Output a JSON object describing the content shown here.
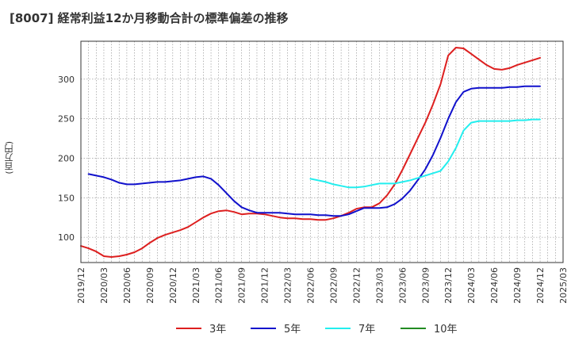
{
  "chart_data": {
    "type": "line",
    "title": "[8007]  経常利益12か月移動合計の標準偏差の推移",
    "ylabel": "(百万円)",
    "xlabel": "",
    "ylim": [
      68,
      348
    ],
    "yticks": [
      100,
      150,
      200,
      250,
      300
    ],
    "x_tick_labels": [
      "2019/12",
      "2020/03",
      "2020/06",
      "2020/09",
      "2020/12",
      "2021/03",
      "2021/06",
      "2021/09",
      "2021/12",
      "2022/03",
      "2022/06",
      "2022/09",
      "2022/12",
      "2023/03",
      "2023/06",
      "2023/09",
      "2023/12",
      "2024/03",
      "2024/06",
      "2024/09",
      "2024/12",
      "2025/03"
    ],
    "grid": true,
    "legend_position": "bottom",
    "series": [
      {
        "name": "3年",
        "color": "#dd1f1f",
        "values": [
          89,
          86,
          82,
          76,
          75,
          76,
          78,
          81,
          86,
          93,
          99,
          103,
          106,
          109,
          113,
          119,
          125,
          130,
          133,
          134,
          132,
          129,
          130,
          130,
          129,
          127,
          125,
          124,
          124,
          123,
          123,
          122,
          122,
          124,
          127,
          131,
          136,
          138,
          138,
          143,
          153,
          167,
          185,
          205,
          225,
          245,
          268,
          294,
          330,
          340,
          339,
          332,
          325,
          318,
          313,
          312,
          314,
          318,
          321,
          324,
          327
        ],
        "start_index": 0
      },
      {
        "name": "5年",
        "color": "#1111cc",
        "values": [
          180,
          178,
          176,
          173,
          169,
          167,
          167,
          168,
          169,
          170,
          170,
          171,
          172,
          174,
          176,
          177,
          174,
          166,
          156,
          146,
          138,
          134,
          131,
          131,
          131,
          131,
          130,
          129,
          129,
          129,
          128,
          128,
          127,
          127,
          129,
          133,
          137,
          137,
          137,
          138,
          142,
          149,
          159,
          172,
          186,
          204,
          226,
          250,
          271,
          284,
          288,
          289,
          289,
          289,
          289,
          290,
          290,
          291,
          291,
          291
        ],
        "start_index": 1
      },
      {
        "name": "7年",
        "color": "#22eeee",
        "values": [
          174,
          172,
          170,
          167,
          165,
          163,
          163,
          164,
          166,
          168,
          168,
          168,
          170,
          172,
          175,
          178,
          181,
          184,
          196,
          213,
          235,
          245,
          247,
          247,
          247,
          247,
          247,
          248,
          248,
          249,
          249
        ],
        "start_index": 30
      },
      {
        "name": "10年",
        "color": "#228B22",
        "values": [],
        "start_index": 0
      }
    ]
  }
}
